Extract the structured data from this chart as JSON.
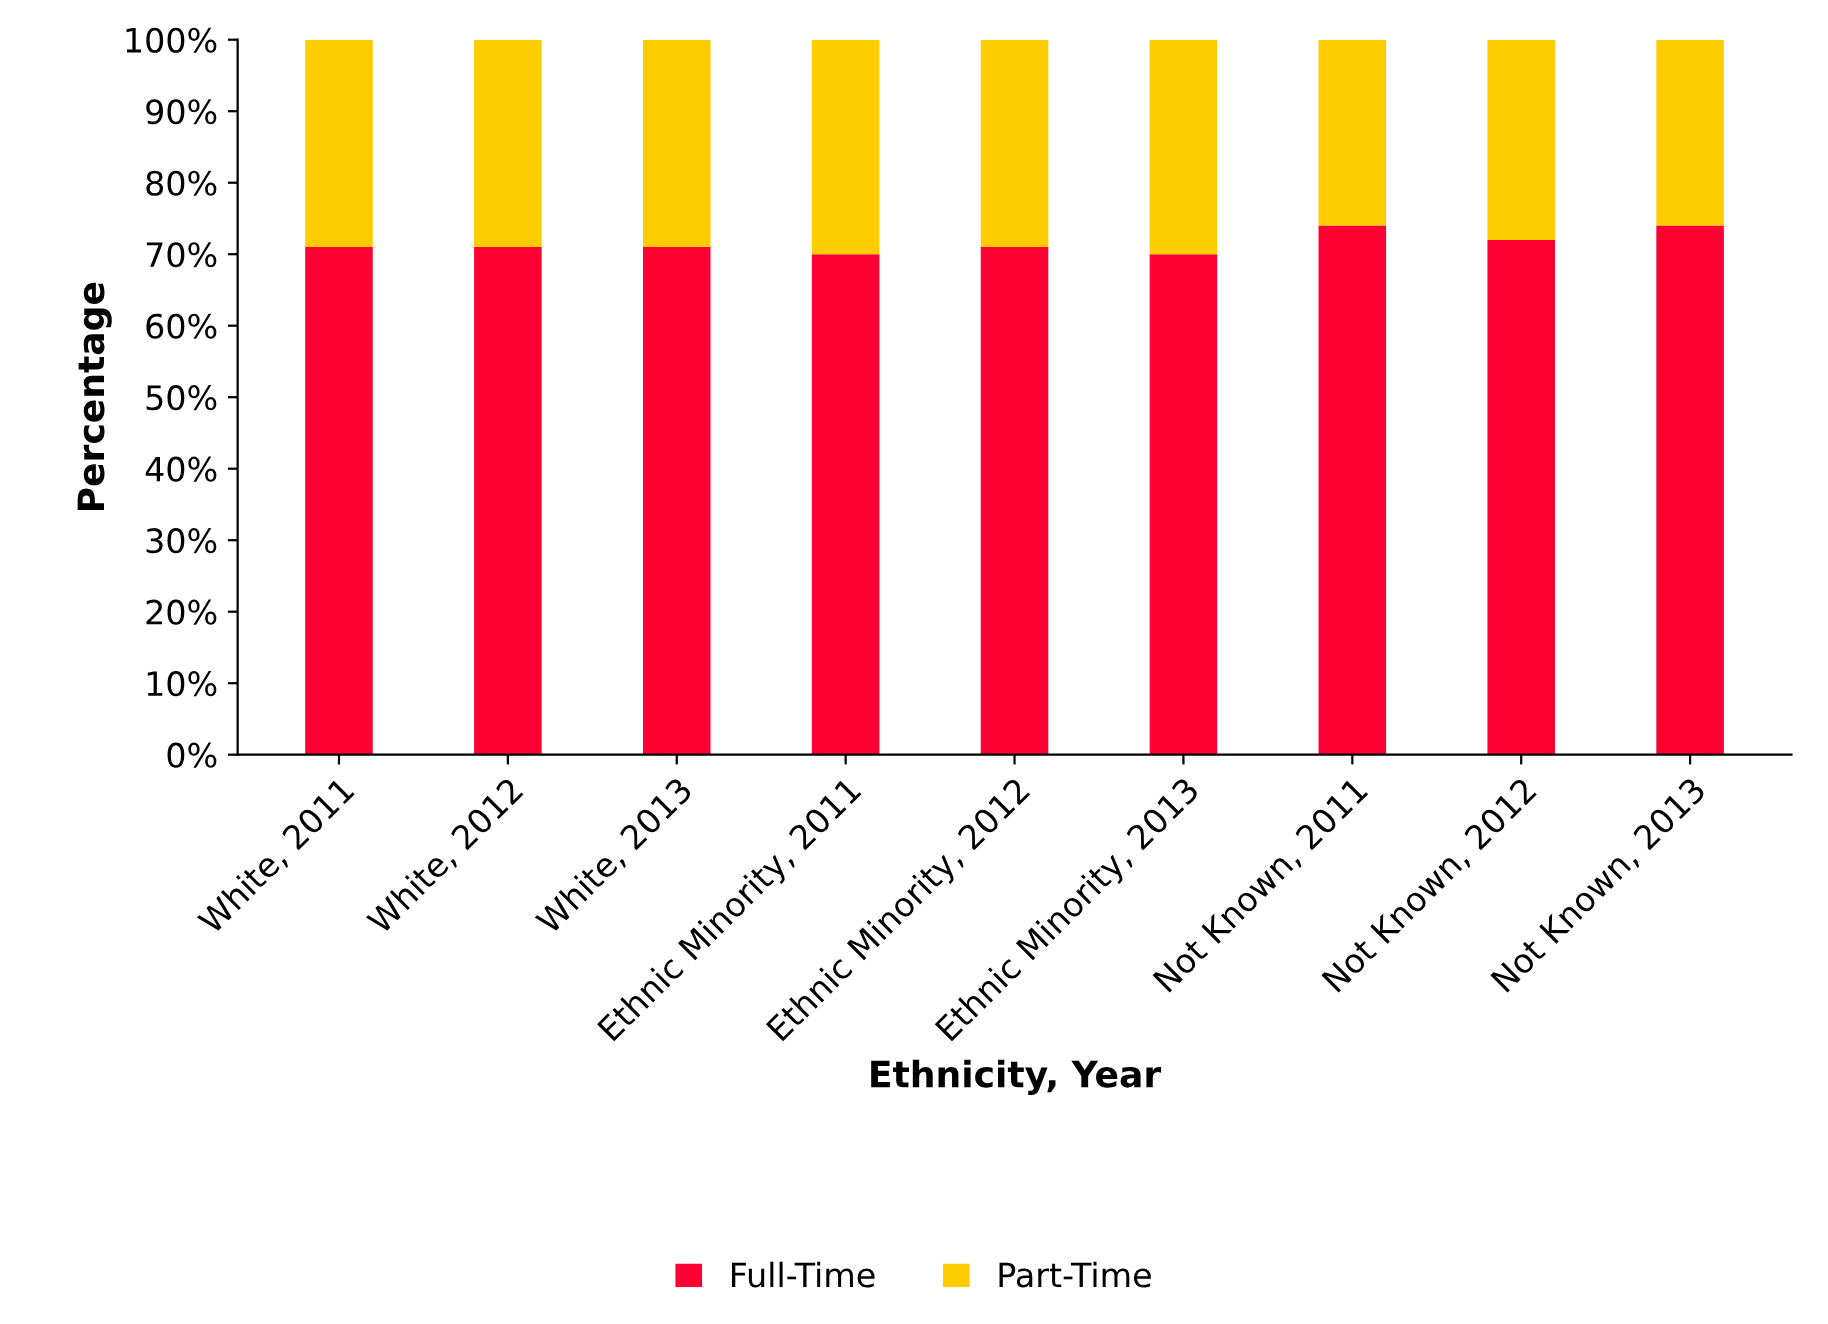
{
  "chart_data": {
    "type": "bar",
    "stacked": true,
    "xlabel": "Ethnicity, Year",
    "ylabel": "Percentage",
    "categories": [
      "White, 2011",
      "White, 2012",
      "White, 2013",
      "Ethnic Minority, 2011",
      "Ethnic Minority, 2012",
      "Ethnic Minority, 2013",
      "Not Known, 2011",
      "Not Known, 2012",
      "Not Known, 2013"
    ],
    "series": [
      {
        "name": "Full-Time",
        "color": "#ff0033",
        "values": [
          71,
          71,
          71,
          70,
          71,
          70,
          74,
          72,
          74
        ]
      },
      {
        "name": "Part-Time",
        "color": "#ffcc00",
        "values": [
          29,
          29,
          29,
          30,
          29,
          30,
          26,
          28,
          26
        ]
      }
    ],
    "ylim": [
      0,
      100
    ],
    "yticks": [
      {
        "value": 0,
        "label": "0%"
      },
      {
        "value": 10,
        "label": "10%"
      },
      {
        "value": 20,
        "label": "20%"
      },
      {
        "value": 30,
        "label": "30%"
      },
      {
        "value": 40,
        "label": "40%"
      },
      {
        "value": 50,
        "label": "50%"
      },
      {
        "value": 60,
        "label": "60%"
      },
      {
        "value": 70,
        "label": "70%"
      },
      {
        "value": 80,
        "label": "80%"
      },
      {
        "value": 90,
        "label": "90%"
      },
      {
        "value": 100,
        "label": "100%"
      }
    ],
    "grid": false,
    "legend": "bottom"
  }
}
